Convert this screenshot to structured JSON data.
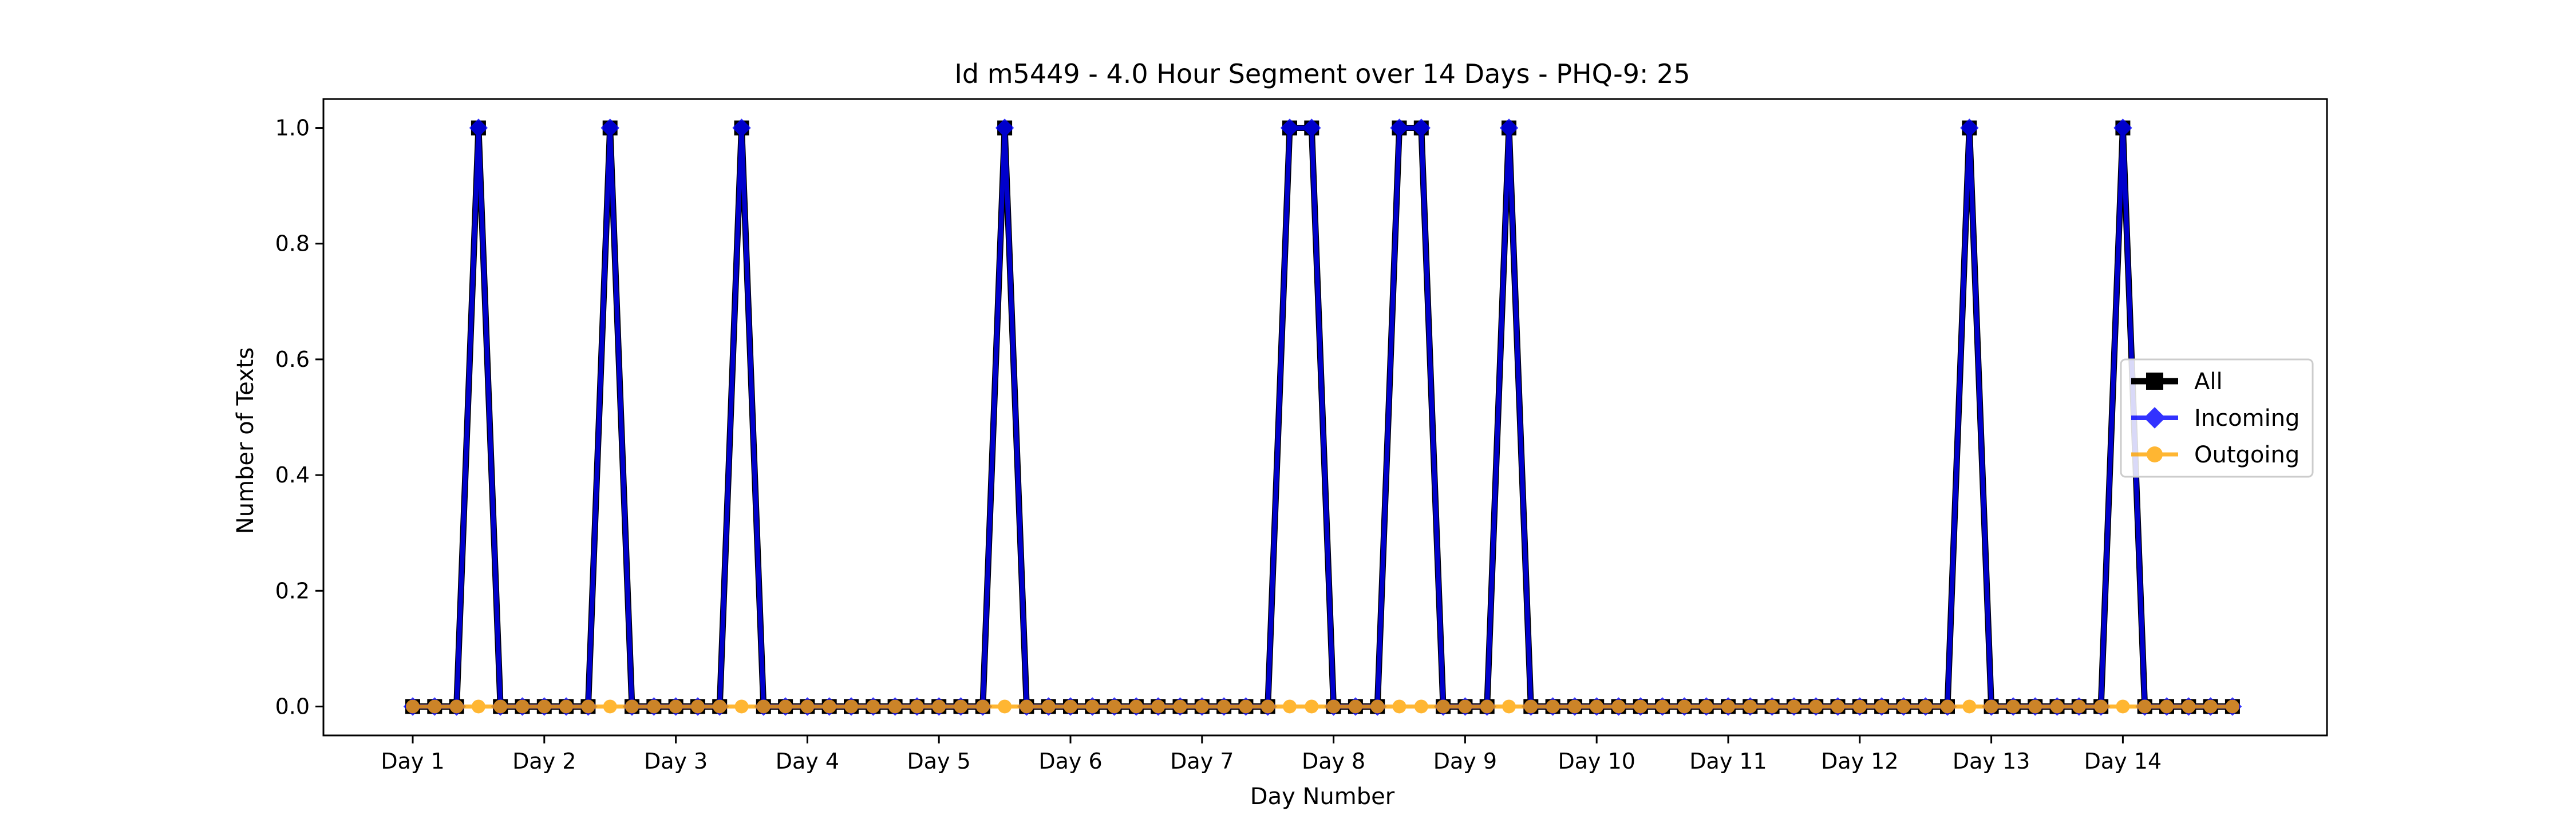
{
  "chart_data": {
    "type": "line",
    "title": "Id m5449 - 4.0 Hour Segment over 14 Days - PHQ-9: 25",
    "xlabel": "Day Number",
    "ylabel": "Number of Texts",
    "ylim": [
      -0.05,
      1.05
    ],
    "y_ticks": [
      "0.0",
      "0.2",
      "0.4",
      "0.6",
      "0.8",
      "1.0"
    ],
    "x_ticks": [
      "Day 1",
      "Day 2",
      "Day 3",
      "Day 4",
      "Day 5",
      "Day 6",
      "Day 7",
      "Day 8",
      "Day 9",
      "Day 10",
      "Day 11",
      "Day 12",
      "Day 13",
      "Day 14"
    ],
    "segments_per_day": 6,
    "legend_position": "center right",
    "grid": false,
    "series": [
      {
        "name": "All",
        "color": "#000000",
        "marker": "square",
        "values": [
          0,
          0,
          0,
          1,
          0,
          0,
          0,
          0,
          0,
          1,
          0,
          0,
          0,
          0,
          0,
          1,
          0,
          0,
          0,
          0,
          0,
          0,
          0,
          0,
          0,
          0,
          0,
          1,
          0,
          0,
          0,
          0,
          0,
          0,
          0,
          0,
          0,
          0,
          0,
          0,
          1,
          1,
          0,
          0,
          0,
          1,
          1,
          0,
          0,
          0,
          1,
          0,
          0,
          0,
          0,
          0,
          0,
          0,
          0,
          0,
          0,
          0,
          0,
          0,
          0,
          0,
          0,
          0,
          0,
          0,
          0,
          1,
          0,
          0,
          0,
          0,
          0,
          0,
          1,
          0,
          0,
          0,
          0,
          0
        ]
      },
      {
        "name": "Incoming",
        "color": "#0000ff",
        "marker": "diamond",
        "values": [
          0,
          0,
          0,
          1,
          0,
          0,
          0,
          0,
          0,
          1,
          0,
          0,
          0,
          0,
          0,
          1,
          0,
          0,
          0,
          0,
          0,
          0,
          0,
          0,
          0,
          0,
          0,
          1,
          0,
          0,
          0,
          0,
          0,
          0,
          0,
          0,
          0,
          0,
          0,
          0,
          1,
          1,
          0,
          0,
          0,
          1,
          1,
          0,
          0,
          0,
          1,
          0,
          0,
          0,
          0,
          0,
          0,
          0,
          0,
          0,
          0,
          0,
          0,
          0,
          0,
          0,
          0,
          0,
          0,
          0,
          0,
          1,
          0,
          0,
          0,
          0,
          0,
          0,
          1,
          0,
          0,
          0,
          0,
          0
        ]
      },
      {
        "name": "Outgoing",
        "color": "#ffa500",
        "marker": "circle",
        "values": [
          0,
          0,
          0,
          0,
          0,
          0,
          0,
          0,
          0,
          0,
          0,
          0,
          0,
          0,
          0,
          0,
          0,
          0,
          0,
          0,
          0,
          0,
          0,
          0,
          0,
          0,
          0,
          0,
          0,
          0,
          0,
          0,
          0,
          0,
          0,
          0,
          0,
          0,
          0,
          0,
          0,
          0,
          0,
          0,
          0,
          0,
          0,
          0,
          0,
          0,
          0,
          0,
          0,
          0,
          0,
          0,
          0,
          0,
          0,
          0,
          0,
          0,
          0,
          0,
          0,
          0,
          0,
          0,
          0,
          0,
          0,
          0,
          0,
          0,
          0,
          0,
          0,
          0,
          0,
          0,
          0,
          0,
          0,
          0
        ]
      }
    ]
  }
}
